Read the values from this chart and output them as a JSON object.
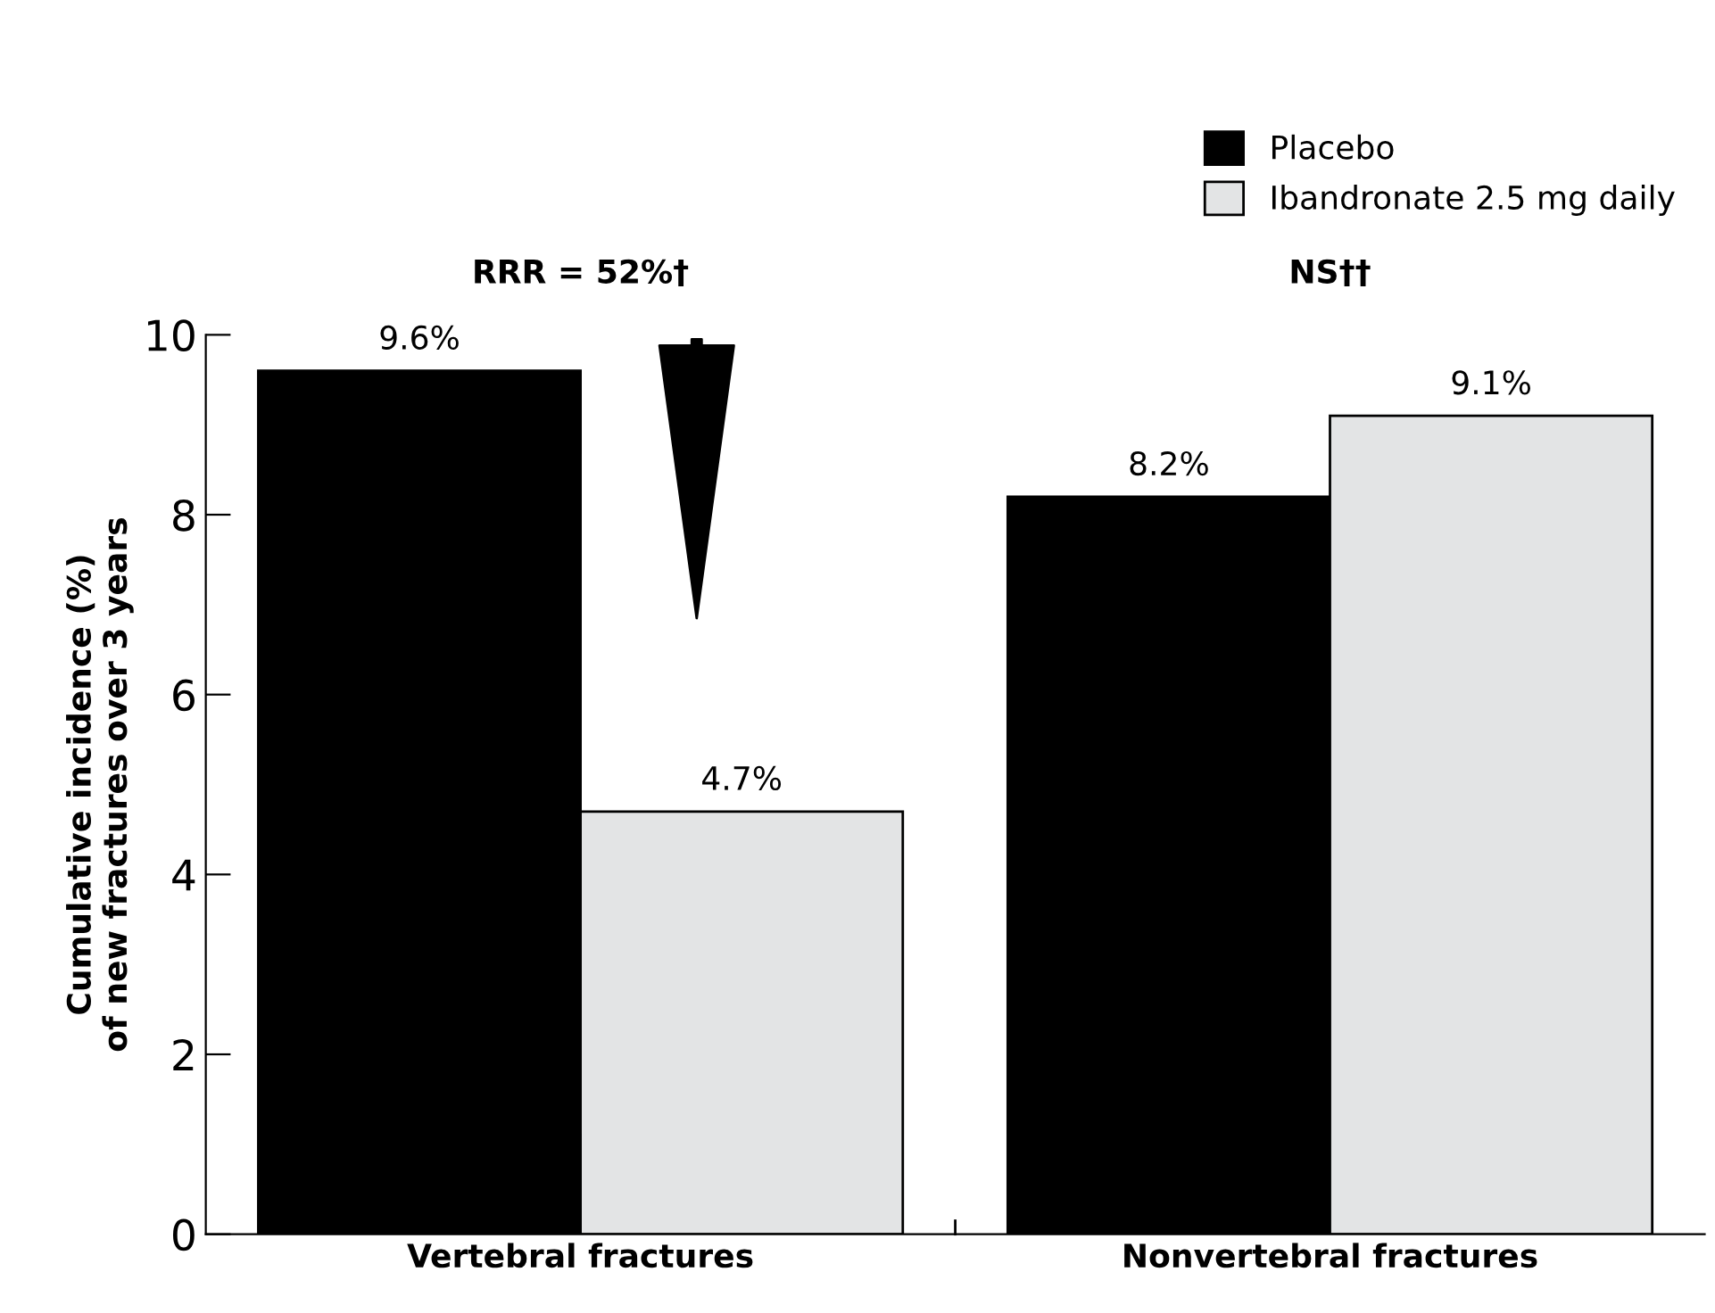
{
  "chart_data": {
    "type": "bar",
    "categories": [
      "Vertebral fractures",
      "Nonvertebral fractures"
    ],
    "series": [
      {
        "name": "Placebo",
        "color": "#000000",
        "values": [
          9.6,
          8.2
        ]
      },
      {
        "name": "Ibandronate 2.5 mg daily",
        "color": "#e3e4e5",
        "values": [
          4.7,
          9.1
        ]
      }
    ],
    "value_labels": [
      [
        "9.6%",
        "8.2%"
      ],
      [
        "4.7%",
        "9.1%"
      ]
    ],
    "ylabel": "Cumulative incidence (%)\nof new fractures over 3 years",
    "annotations": [
      "RRR = 52%†",
      "NS††"
    ],
    "ylim": [
      0,
      10
    ],
    "yticks": [
      0,
      2,
      4,
      6,
      8,
      10
    ],
    "grid": false,
    "legend": "top right"
  }
}
